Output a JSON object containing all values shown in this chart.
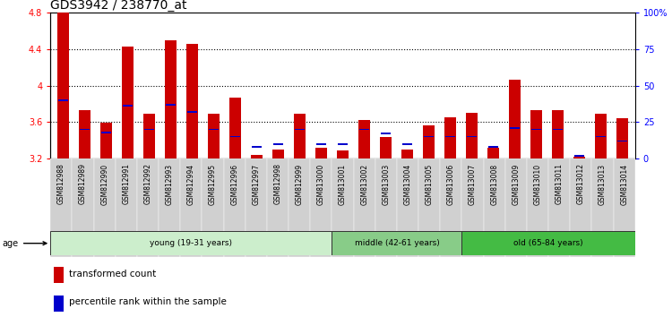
{
  "title": "GDS3942 / 238770_at",
  "samples": [
    "GSM812988",
    "GSM812989",
    "GSM812990",
    "GSM812991",
    "GSM812992",
    "GSM812993",
    "GSM812994",
    "GSM812995",
    "GSM812996",
    "GSM812997",
    "GSM812998",
    "GSM812999",
    "GSM813000",
    "GSM813001",
    "GSM813002",
    "GSM813003",
    "GSM813004",
    "GSM813005",
    "GSM813006",
    "GSM813007",
    "GSM813008",
    "GSM813009",
    "GSM813010",
    "GSM813011",
    "GSM813012",
    "GSM813013",
    "GSM813014"
  ],
  "transformed_count": [
    4.8,
    3.73,
    3.59,
    4.43,
    3.69,
    4.5,
    4.46,
    3.69,
    3.87,
    3.24,
    3.3,
    3.69,
    3.32,
    3.29,
    3.62,
    3.44,
    3.3,
    3.56,
    3.65,
    3.7,
    3.32,
    4.06,
    3.73,
    3.73,
    3.22,
    3.69,
    3.64
  ],
  "percentile_rank": [
    40,
    20,
    18,
    36,
    20,
    37,
    32,
    20,
    15,
    8,
    10,
    20,
    10,
    10,
    20,
    17,
    10,
    15,
    15,
    15,
    8,
    21,
    20,
    20,
    2,
    15,
    12
  ],
  "ylim_left": [
    3.2,
    4.8
  ],
  "ylim_right": [
    0,
    100
  ],
  "yticks_left": [
    3.2,
    3.6,
    4.0,
    4.4,
    4.8
  ],
  "ytick_labels_left": [
    "3.2",
    "3.6",
    "4",
    "4.4",
    "4.8"
  ],
  "yticks_right": [
    0,
    25,
    50,
    75,
    100
  ],
  "ytick_labels_right": [
    "0",
    "25",
    "50",
    "75",
    "100%"
  ],
  "bar_color": "#cc0000",
  "percentile_color": "#0000cc",
  "age_groups": [
    {
      "label": "young (19-31 years)",
      "start": 0,
      "end": 13,
      "color": "#cceecc"
    },
    {
      "label": "middle (42-61 years)",
      "start": 13,
      "end": 19,
      "color": "#88cc88"
    },
    {
      "label": "old (65-84 years)",
      "start": 19,
      "end": 27,
      "color": "#44bb44"
    }
  ],
  "legend_items": [
    {
      "label": "transformed count",
      "color": "#cc0000"
    },
    {
      "label": "percentile rank within the sample",
      "color": "#0000cc"
    }
  ],
  "title_fontsize": 10,
  "tick_fontsize": 7,
  "label_fontsize": 7,
  "xtick_fontsize": 5.5
}
